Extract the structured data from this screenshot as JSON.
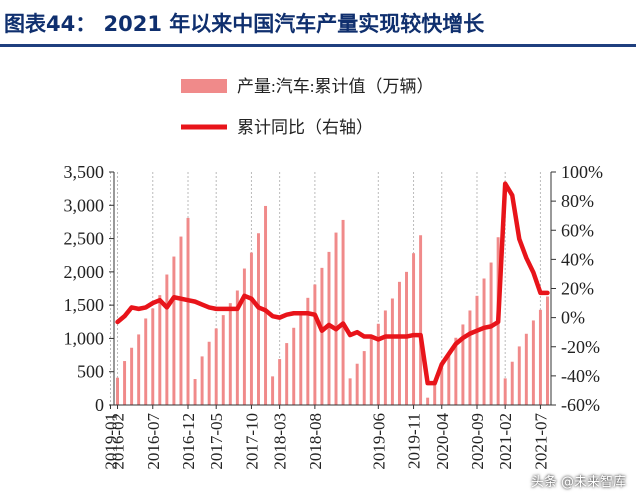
{
  "header": {
    "title": "图表44：   2021 年以来中国汽车产量实现较快增长"
  },
  "watermark": "头条 @未来智库",
  "chart_data": {
    "type": "bar",
    "title": "2021 年以来中国汽车产量实现较快增长",
    "legend": {
      "placement": "top",
      "bar_label": "产量:汽车:累计值（万辆）",
      "line_label": "累计同比（右轴）"
    },
    "colors": {
      "bar": "#f08a8a",
      "line": "#e8141a",
      "grid": "#bbbbbb"
    },
    "y_left": {
      "range": [
        0,
        3500
      ],
      "ticks": [
        "0",
        "500",
        "1,000",
        "1,500",
        "2,000",
        "2,500",
        "3,000",
        "3,500"
      ]
    },
    "y_right": {
      "range": [
        -60,
        100
      ],
      "ticks": [
        "-60%",
        "-40%",
        "-20%",
        "0%",
        "20%",
        "40%",
        "60%",
        "80%",
        "100%"
      ]
    },
    "grid": true,
    "x_tick_labels": [
      "2016-02",
      "2016-07",
      "2016-12",
      "2017-05",
      "2017-10",
      "2018-03",
      "2018-08",
      "2019-01",
      "2019-06",
      "2019-11",
      "2020-04",
      "2020-09",
      "2021-02",
      "2021-07"
    ],
    "categories": [
      "2016-02",
      "2016-03",
      "2016-04",
      "2016-05",
      "2016-06",
      "2016-07",
      "2016-08",
      "2016-09",
      "2016-10",
      "2016-11",
      "2016-12",
      "2017-02",
      "2017-03",
      "2017-04",
      "2017-05",
      "2017-06",
      "2017-07",
      "2017-08",
      "2017-09",
      "2017-10",
      "2017-11",
      "2017-12",
      "2018-02",
      "2018-03",
      "2018-04",
      "2018-05",
      "2018-06",
      "2018-07",
      "2018-08",
      "2018-09",
      "2018-10",
      "2018-11",
      "2018-12",
      "2019-02",
      "2019-03",
      "2019-04",
      "2019-05",
      "2019-06",
      "2019-07",
      "2019-08",
      "2019-09",
      "2019-10",
      "2019-11",
      "2019-12",
      "2020-02",
      "2020-03",
      "2020-04",
      "2020-05",
      "2020-06",
      "2020-07",
      "2020-08",
      "2020-09",
      "2020-10",
      "2020-11",
      "2020-12",
      "2021-02",
      "2021-03",
      "2021-04",
      "2021-05",
      "2021-06",
      "2021-07",
      "2021-08"
    ],
    "series": [
      {
        "kind": "bar",
        "axis": "left",
        "values": [
          410,
          660,
          860,
          1060,
          1300,
          1450,
          1650,
          1960,
          2230,
          2530,
          2810,
          390,
          730,
          950,
          1150,
          1350,
          1530,
          1720,
          2050,
          2290,
          2580,
          2990,
          430,
          690,
          930,
          1160,
          1410,
          1610,
          1810,
          2060,
          2300,
          2590,
          2780,
          400,
          620,
          810,
          1010,
          1220,
          1420,
          1600,
          1850,
          2000,
          2280,
          2550,
          110,
          350,
          560,
          770,
          1010,
          1210,
          1420,
          1640,
          1900,
          2140,
          2520,
          400,
          650,
          880,
          1070,
          1270,
          1430,
          1630
        ]
      },
      {
        "kind": "line",
        "axis": "right",
        "values": [
          -3,
          1,
          7,
          6,
          7,
          10,
          12,
          7,
          14,
          13,
          12,
          11,
          9,
          7,
          6,
          6,
          6,
          6,
          15,
          13,
          7,
          5,
          1,
          0,
          2,
          3,
          3,
          3,
          2,
          -9,
          -5,
          -8,
          -4,
          -12,
          -10,
          -13,
          -13,
          -15,
          -13,
          -13,
          -13,
          -13,
          -12,
          -12,
          -45,
          -45,
          -32,
          -25,
          -18,
          -14,
          -11,
          -9,
          -7,
          -6,
          -3,
          92,
          84,
          54,
          41,
          31,
          17,
          17
        ]
      }
    ]
  }
}
